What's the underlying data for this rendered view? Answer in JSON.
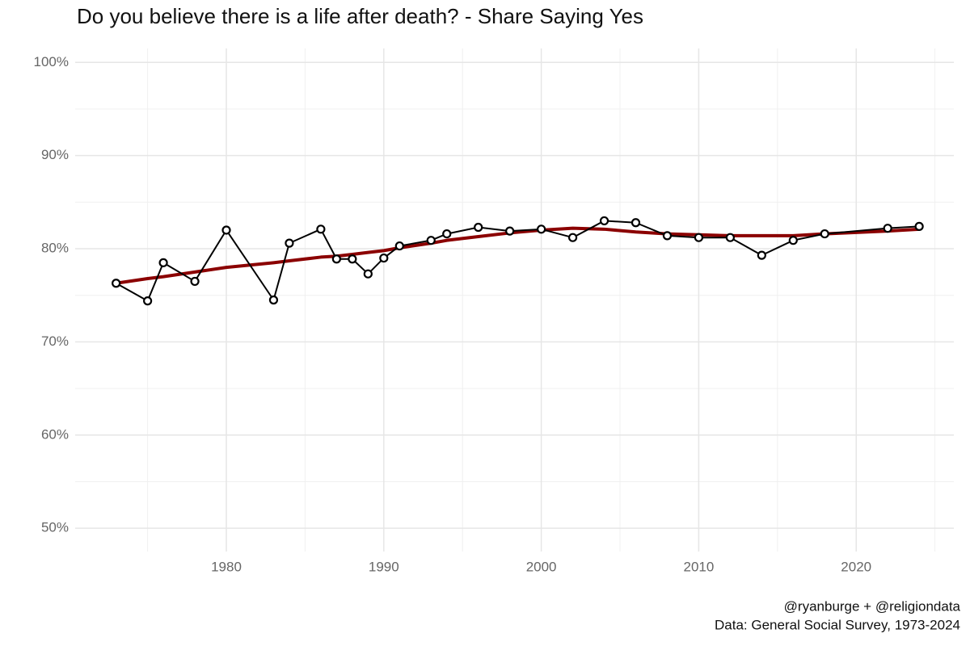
{
  "chart_data": {
    "type": "line",
    "title": "Do you believe there is a life after death? - Share Saying Yes",
    "caption": [
      "@ryanburge + @religiondata",
      "Data: General Social Survey, 1973-2024"
    ],
    "x": [
      1973,
      1975,
      1976,
      1978,
      1980,
      1983,
      1984,
      1986,
      1987,
      1988,
      1989,
      1990,
      1991,
      1993,
      1994,
      1996,
      1998,
      2000,
      2002,
      2004,
      2006,
      2008,
      2010,
      2012,
      2014,
      2016,
      2018,
      2022,
      2024
    ],
    "series": [
      {
        "color": "#000000",
        "markers": true,
        "values": [
          76.3,
          74.4,
          78.5,
          76.5,
          82.0,
          74.5,
          80.6,
          82.1,
          78.9,
          78.9,
          77.3,
          79.0,
          80.3,
          80.9,
          81.6,
          82.3,
          81.9,
          82.1,
          81.2,
          83.0,
          82.8,
          81.4,
          81.2,
          81.2,
          79.3,
          80.9,
          81.6,
          82.2,
          82.4
        ]
      },
      {
        "color": "#8b0000",
        "markers": false,
        "values": [
          76.3,
          76.8,
          77.0,
          77.5,
          78.0,
          78.5,
          78.7,
          79.1,
          79.2,
          79.4,
          79.6,
          79.8,
          80.1,
          80.6,
          80.9,
          81.3,
          81.7,
          82.0,
          82.2,
          82.1,
          81.8,
          81.6,
          81.5,
          81.4,
          81.4,
          81.4,
          81.6,
          81.9,
          82.1
        ]
      }
    ],
    "xlim": [
      1970.4,
      2026.2
    ],
    "xticks": [
      1980,
      1990,
      2000,
      2010,
      2020
    ],
    "ylim": [
      47.5,
      101.5
    ],
    "yticks": [
      {
        "value": 50,
        "label": "50%"
      },
      {
        "value": 60,
        "label": "60%"
      },
      {
        "value": 70,
        "label": "70%"
      },
      {
        "value": 80,
        "label": "80%"
      },
      {
        "value": 90,
        "label": "90%"
      },
      {
        "value": 100,
        "label": "100%"
      }
    ],
    "grid": true
  }
}
